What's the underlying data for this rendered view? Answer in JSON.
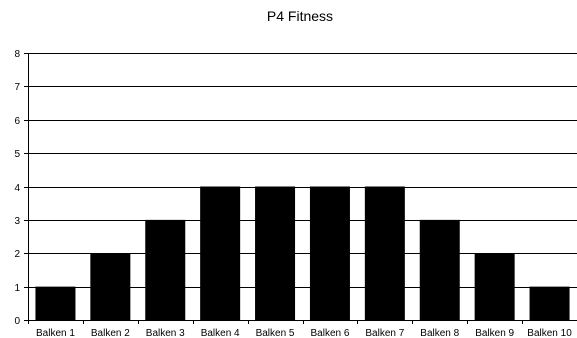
{
  "chart_data": {
    "type": "bar",
    "title": "P4 Fitness",
    "xlabel": "",
    "ylabel": "",
    "categories": [
      "Balken 1",
      "Balken 2",
      "Balken 3",
      "Balken 4",
      "Balken 5",
      "Balken 6",
      "Balken 7",
      "Balken 8",
      "Balken 9",
      "Balken 10"
    ],
    "values": [
      1,
      2,
      3,
      4,
      4,
      4,
      4,
      3,
      2,
      1
    ],
    "ylim": [
      0,
      8
    ],
    "yticks": [
      "0",
      "1",
      "2",
      "3",
      "4",
      "5",
      "6",
      "7",
      "8"
    ],
    "grid": true,
    "legend": "none",
    "colors": {
      "bar": "#000000",
      "grid": "#000000",
      "axis": "#000000",
      "background": "#ffffff"
    }
  }
}
